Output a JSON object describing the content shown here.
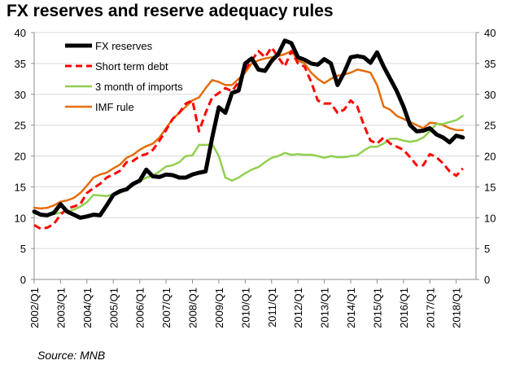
{
  "chart_data": {
    "type": "line",
    "title": "FX reserves and reserve adequacy rules",
    "source": "Source: MNB",
    "xlabel": "",
    "ylabel": "",
    "ylim": [
      0,
      40
    ],
    "y_ticks": [
      0,
      5,
      10,
      15,
      20,
      25,
      30,
      35,
      40
    ],
    "secondary_y_ticks": [
      0,
      5,
      10,
      15,
      20,
      25,
      30,
      35,
      40
    ],
    "grid": true,
    "legend_position": "top-left",
    "x_start": 2002.0,
    "x_end": 2018.75,
    "x_labels": [
      "2002/Q1",
      "2003/Q1",
      "2004/Q1",
      "2005/Q1",
      "2006/Q1",
      "2007/Q1",
      "2008/Q1",
      "2009/Q1",
      "2010/Q1",
      "2011/Q1",
      "2012/Q1",
      "2013/Q1",
      "2014/Q1",
      "2015/Q1",
      "2016/Q1",
      "2017/Q1",
      "2018/Q1"
    ],
    "x_label_positions": [
      2002,
      2003,
      2004,
      2005,
      2006,
      2007,
      2008,
      2009,
      2010,
      2011,
      2012,
      2013,
      2014,
      2015,
      2016,
      2017,
      2018
    ],
    "series": [
      {
        "name": "FX reserves",
        "color": "#000000",
        "style": "solid-thick",
        "x": [
          2002.0,
          2002.25,
          2002.5,
          2002.75,
          2003.0,
          2003.25,
          2003.5,
          2003.75,
          2004.0,
          2004.25,
          2004.5,
          2004.75,
          2005.0,
          2005.25,
          2005.5,
          2005.75,
          2006.0,
          2006.25,
          2006.5,
          2006.75,
          2007.0,
          2007.25,
          2007.5,
          2007.75,
          2008.0,
          2008.25,
          2008.5,
          2008.75,
          2009.0,
          2009.25,
          2009.5,
          2009.75,
          2010.0,
          2010.25,
          2010.5,
          2010.75,
          2011.0,
          2011.25,
          2011.5,
          2011.75,
          2012.0,
          2012.25,
          2012.5,
          2012.75,
          2013.0,
          2013.25,
          2013.5,
          2013.75,
          2014.0,
          2014.25,
          2014.5,
          2014.75,
          2015.0,
          2015.25,
          2015.5,
          2015.75,
          2016.0,
          2016.25,
          2016.5,
          2016.75,
          2017.0,
          2017.25,
          2017.5,
          2017.75,
          2018.0,
          2018.25
        ],
        "values": [
          11.0,
          10.5,
          10.4,
          10.8,
          12.2,
          11.0,
          10.5,
          10.0,
          10.2,
          10.5,
          10.4,
          12.0,
          13.7,
          14.3,
          14.6,
          15.5,
          16.0,
          17.8,
          16.7,
          16.6,
          17.0,
          16.9,
          16.5,
          16.5,
          17.0,
          17.3,
          17.5,
          23.0,
          27.9,
          27.0,
          30.2,
          30.6,
          35.0,
          35.8,
          34.0,
          33.8,
          35.4,
          36.5,
          38.7,
          38.3,
          36.0,
          35.6,
          35.0,
          34.8,
          35.7,
          35.0,
          31.5,
          33.5,
          36.0,
          36.2,
          36.0,
          35.1,
          36.8,
          34.5,
          32.5,
          30.5,
          28.0,
          25.0,
          24.0,
          24.1,
          24.5,
          23.5,
          23.0,
          22.2,
          23.3,
          23.0
        ]
      },
      {
        "name": "Short term debt",
        "color": "#ff0000",
        "style": "dashed",
        "x": [
          2002.0,
          2002.25,
          2002.5,
          2002.75,
          2003.0,
          2003.25,
          2003.5,
          2003.75,
          2004.0,
          2004.25,
          2004.5,
          2004.75,
          2005.0,
          2005.25,
          2005.5,
          2005.75,
          2006.0,
          2006.25,
          2006.5,
          2006.75,
          2007.0,
          2007.25,
          2007.5,
          2007.75,
          2008.0,
          2008.25,
          2008.5,
          2008.75,
          2009.0,
          2009.25,
          2009.5,
          2009.75,
          2010.0,
          2010.25,
          2010.5,
          2010.75,
          2011.0,
          2011.25,
          2011.5,
          2011.75,
          2012.0,
          2012.25,
          2012.5,
          2012.75,
          2013.0,
          2013.25,
          2013.5,
          2013.75,
          2014.0,
          2014.25,
          2014.5,
          2014.75,
          2015.0,
          2015.25,
          2015.5,
          2015.75,
          2016.0,
          2016.25,
          2016.5,
          2016.75,
          2017.0,
          2017.25,
          2017.5,
          2017.75,
          2018.0,
          2018.25
        ],
        "values": [
          8.8,
          8.2,
          8.4,
          9.0,
          10.5,
          11.5,
          11.8,
          12.2,
          14.0,
          14.8,
          15.5,
          16.5,
          17.0,
          17.6,
          19.0,
          19.2,
          20.0,
          20.3,
          21.0,
          22.5,
          24.2,
          26.0,
          27.0,
          28.5,
          29.0,
          24.0,
          27.0,
          29.5,
          30.2,
          31.0,
          30.5,
          32.0,
          34.0,
          35.5,
          37.0,
          36.0,
          37.6,
          36.0,
          34.5,
          37.0,
          35.0,
          34.5,
          32.0,
          29.0,
          28.5,
          28.5,
          27.0,
          27.5,
          29.0,
          28.0,
          25.0,
          22.5,
          22.0,
          23.0,
          22.0,
          21.5,
          21.0,
          19.8,
          18.5,
          18.5,
          20.3,
          19.8,
          18.8,
          17.5,
          16.8,
          18.0
        ]
      },
      {
        "name": "3 month of imports",
        "color": "#92d050",
        "style": "solid",
        "x": [
          2002.0,
          2002.25,
          2002.5,
          2002.75,
          2003.0,
          2003.25,
          2003.5,
          2003.75,
          2004.0,
          2004.25,
          2004.5,
          2004.75,
          2005.0,
          2005.25,
          2005.5,
          2005.75,
          2006.0,
          2006.25,
          2006.5,
          2006.75,
          2007.0,
          2007.25,
          2007.5,
          2007.75,
          2008.0,
          2008.25,
          2008.5,
          2008.75,
          2009.0,
          2009.25,
          2009.5,
          2009.75,
          2010.0,
          2010.25,
          2010.5,
          2010.75,
          2011.0,
          2011.25,
          2011.5,
          2011.75,
          2012.0,
          2012.25,
          2012.5,
          2012.75,
          2013.0,
          2013.25,
          2013.5,
          2013.75,
          2014.0,
          2014.25,
          2014.5,
          2014.75,
          2015.0,
          2015.25,
          2015.5,
          2015.75,
          2016.0,
          2016.25,
          2016.5,
          2016.75,
          2017.0,
          2017.25,
          2017.5,
          2017.75,
          2018.0,
          2018.25
        ],
        "values": [
          10.7,
          10.5,
          10.5,
          10.6,
          10.8,
          11.0,
          11.3,
          11.8,
          12.5,
          13.7,
          13.6,
          13.5,
          13.8,
          14.0,
          14.6,
          15.2,
          15.9,
          16.5,
          16.8,
          17.5,
          18.3,
          18.5,
          19.0,
          20.0,
          20.1,
          21.8,
          21.8,
          21.9,
          20.0,
          16.5,
          16.0,
          16.5,
          17.2,
          17.8,
          18.2,
          19.0,
          19.7,
          20.0,
          20.5,
          20.2,
          20.3,
          20.2,
          20.2,
          20.0,
          19.7,
          20.0,
          19.8,
          19.8,
          20.0,
          20.1,
          20.9,
          21.5,
          21.5,
          22.0,
          22.8,
          22.8,
          22.5,
          22.3,
          22.5,
          23.0,
          24.0,
          25.2,
          25.2,
          25.5,
          25.8,
          26.5
        ]
      },
      {
        "name": "IMF rule",
        "color": "#e46c0a",
        "style": "solid",
        "x": [
          2002.0,
          2002.25,
          2002.5,
          2002.75,
          2003.0,
          2003.25,
          2003.5,
          2003.75,
          2004.0,
          2004.25,
          2004.5,
          2004.75,
          2005.0,
          2005.25,
          2005.5,
          2005.75,
          2006.0,
          2006.25,
          2006.5,
          2006.75,
          2007.0,
          2007.25,
          2007.5,
          2007.75,
          2008.0,
          2008.25,
          2008.5,
          2008.75,
          2009.0,
          2009.25,
          2009.5,
          2009.75,
          2010.0,
          2010.25,
          2010.5,
          2010.75,
          2011.0,
          2011.25,
          2011.5,
          2011.75,
          2012.0,
          2012.25,
          2012.5,
          2012.75,
          2013.0,
          2013.25,
          2013.5,
          2013.75,
          2014.0,
          2014.25,
          2014.5,
          2014.75,
          2015.0,
          2015.25,
          2015.5,
          2015.75,
          2016.0,
          2016.25,
          2016.5,
          2016.75,
          2017.0,
          2017.25,
          2017.5,
          2017.75,
          2018.0,
          2018.25
        ],
        "values": [
          11.6,
          11.5,
          11.6,
          12.0,
          12.6,
          12.8,
          13.2,
          14.0,
          15.2,
          16.5,
          17.0,
          17.3,
          18.0,
          18.6,
          19.7,
          20.2,
          21.0,
          21.6,
          22.0,
          23.0,
          24.5,
          26.0,
          27.0,
          28.0,
          29.0,
          29.5,
          31.0,
          32.3,
          32.0,
          31.5,
          31.5,
          32.5,
          33.5,
          35.0,
          35.5,
          35.8,
          36.0,
          36.2,
          36.5,
          37.0,
          35.5,
          35.0,
          33.5,
          32.5,
          31.8,
          32.5,
          33.0,
          33.2,
          33.5,
          34.0,
          33.8,
          33.5,
          31.5,
          28.0,
          27.5,
          26.5,
          26.0,
          25.5,
          25.0,
          24.5,
          25.4,
          25.3,
          25.0,
          24.5,
          24.2,
          24.2
        ]
      }
    ]
  }
}
